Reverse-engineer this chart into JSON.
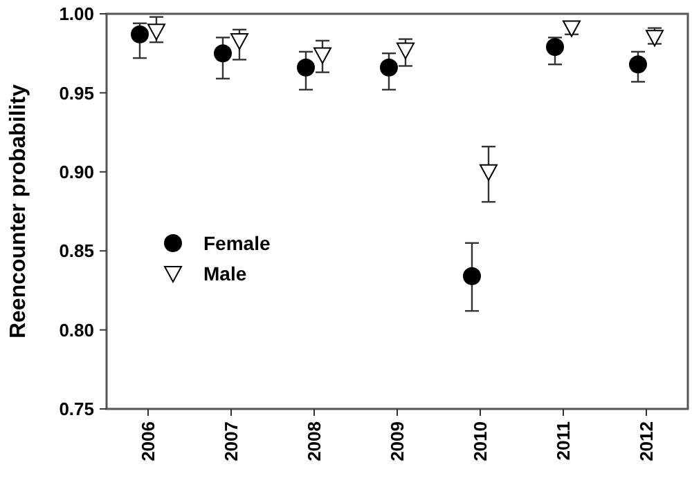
{
  "chart_data": {
    "type": "scatter",
    "ylabel": "Reencounter probability",
    "categories": [
      "2006",
      "2007",
      "2008",
      "2009",
      "2010",
      "2011",
      "2012"
    ],
    "ylim": [
      0.75,
      1.0
    ],
    "yticks": [
      {
        "value": 0.75,
        "label": "0.75"
      },
      {
        "value": 0.8,
        "label": "0.80"
      },
      {
        "value": 0.85,
        "label": "0.85"
      },
      {
        "value": 0.9,
        "label": "0.90"
      },
      {
        "value": 0.95,
        "label": "0.95"
      },
      {
        "value": 1.0,
        "label": "1.00"
      }
    ],
    "grid": false,
    "legend": "bottom left",
    "series": [
      {
        "name": "Female",
        "color": "#000000",
        "marker": "circle",
        "values": [
          0.987,
          0.975,
          0.966,
          0.966,
          0.834,
          0.979,
          0.968
        ],
        "errors": [
          [
            0.972,
            0.994
          ],
          [
            0.959,
            0.985
          ],
          [
            0.952,
            0.976
          ],
          [
            0.952,
            0.975
          ],
          [
            0.812,
            0.855
          ],
          [
            0.968,
            0.985
          ],
          [
            0.957,
            0.976
          ]
        ]
      },
      {
        "name": "Male",
        "color": "#ffffff",
        "marker": "triangle-down",
        "values": [
          0.989,
          0.983,
          0.974,
          0.977,
          0.9,
          0.991,
          0.985
        ],
        "errors": [
          [
            0.982,
            0.998
          ],
          [
            0.971,
            0.99
          ],
          [
            0.963,
            0.983
          ],
          [
            0.967,
            0.984
          ],
          [
            0.881,
            0.916
          ],
          [
            0.987,
            0.995
          ],
          [
            0.981,
            0.991
          ]
        ]
      }
    ]
  }
}
